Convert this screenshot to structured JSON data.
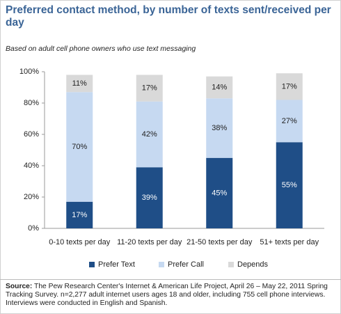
{
  "title": "Preferred contact method, by number of texts sent/received per day",
  "subtitle": "Based on adult cell phone owners who use text messaging",
  "source_label": "Source:",
  "source": "The Pew Research Center's Internet & American Life Project, April 26 – May 22, 2011 Spring Tracking Survey. n=2,277 adult internet users ages 18 and older, including 755 cell phone interviews. Interviews were conducted in English and Spanish.",
  "chart_data": {
    "type": "stacked_bar",
    "categories": [
      "0-10 texts per day",
      "11-20 texts per day",
      "21-50 texts per day",
      "51+ texts per day"
    ],
    "series": [
      {
        "name": "Prefer Text",
        "color": "#1f4e87",
        "values": [
          17,
          39,
          45,
          55
        ],
        "value_labels": [
          "17%",
          "39%",
          "45%",
          "55%"
        ]
      },
      {
        "name": "Prefer Call",
        "color": "#c6d9f1",
        "values": [
          70,
          42,
          38,
          27
        ],
        "value_labels": [
          "70%",
          "42%",
          "38%",
          "27%"
        ]
      },
      {
        "name": "Depends",
        "color": "#d9d9d9",
        "values": [
          11,
          17,
          14,
          17
        ],
        "value_labels": [
          "11%",
          "17%",
          "14%",
          "17%"
        ]
      }
    ],
    "ylim": [
      0,
      100
    ],
    "yticks": [
      {
        "value": 0,
        "label": "0%"
      },
      {
        "value": 20,
        "label": "20%"
      },
      {
        "value": 40,
        "label": "40%"
      },
      {
        "value": 60,
        "label": "60%"
      },
      {
        "value": 80,
        "label": "80%"
      },
      {
        "value": 100,
        "label": "100%"
      }
    ],
    "legend": "bottom"
  }
}
